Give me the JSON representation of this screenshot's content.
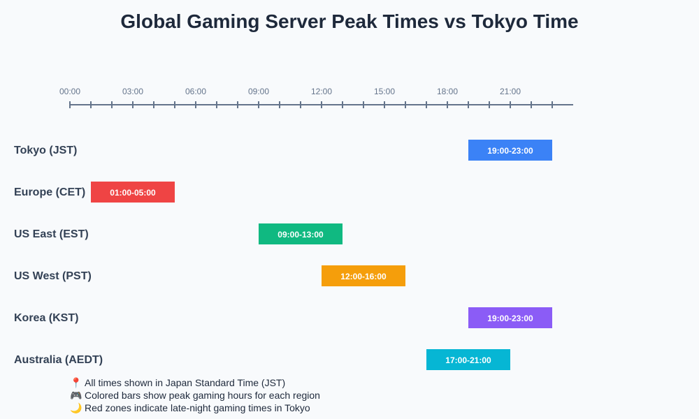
{
  "chart_data": {
    "type": "bar",
    "subtype": "timeline-gantt",
    "title": "Global Gaming Server Peak Times vs Tokyo Time",
    "xlim": [
      0,
      24
    ],
    "tick_labels": [
      "00:00",
      "03:00",
      "06:00",
      "09:00",
      "12:00",
      "15:00",
      "18:00",
      "21:00"
    ],
    "grid": false,
    "series": [
      {
        "region": "Tokyo (JST)",
        "start": 19,
        "end": 23,
        "label": "19:00-23:00",
        "color": "#3b82f6"
      },
      {
        "region": "Europe (CET)",
        "start": 1,
        "end": 5,
        "label": "01:00-05:00",
        "color": "#ef4444"
      },
      {
        "region": "US East (EST)",
        "start": 9,
        "end": 13,
        "label": "09:00-13:00",
        "color": "#10b981"
      },
      {
        "region": "US West (PST)",
        "start": 12,
        "end": 16,
        "label": "12:00-16:00",
        "color": "#f59e0b"
      },
      {
        "region": "Korea (KST)",
        "start": 19,
        "end": 23,
        "label": "19:00-23:00",
        "color": "#8b5cf6"
      },
      {
        "region": "Australia (AEDT)",
        "start": 17,
        "end": 21,
        "label": "17:00-21:00",
        "color": "#06b6d4"
      }
    ],
    "notes": [
      {
        "icon": "pin-icon",
        "text": "All times shown in Japan Standard Time (JST)"
      },
      {
        "icon": "gamepad-icon",
        "text": "Colored bars show peak gaming hours for each region"
      },
      {
        "icon": "moon-icon",
        "text": "Red zones indicate late-night gaming times in Tokyo"
      }
    ]
  }
}
